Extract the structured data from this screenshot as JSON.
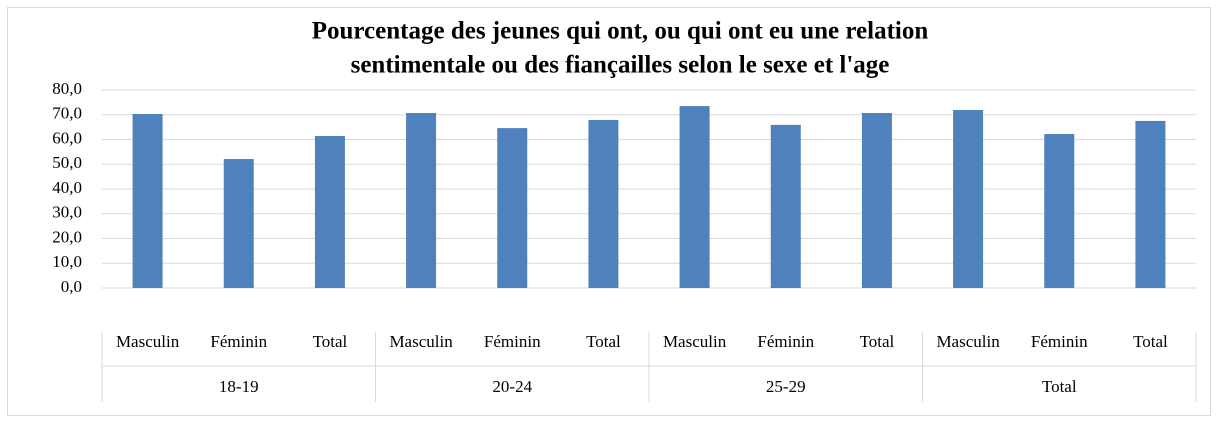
{
  "chart_data": {
    "type": "bar",
    "title": [
      "Pourcentage des jeunes qui ont, ou qui ont eu une relation",
      "sentimentale ou des fiançailles selon le sexe et l'age"
    ],
    "categories": [
      "Masculin",
      "Féminin",
      "Total",
      "Masculin",
      "Féminin",
      "Total",
      "Masculin",
      "Féminin",
      "Total",
      "Masculin",
      "Féminin",
      "Total"
    ],
    "groups": [
      "18-19",
      "20-24",
      "25-29",
      "Total"
    ],
    "values": [
      70.3,
      52.1,
      61.4,
      70.7,
      64.6,
      67.9,
      73.5,
      65.9,
      70.7,
      71.9,
      62.2,
      67.5
    ],
    "color": "#4f81bd",
    "ylim": [
      0,
      80
    ],
    "yticks": [
      {
        "value": 0,
        "label": "0,0"
      },
      {
        "value": 10,
        "label": "10,0"
      },
      {
        "value": 20,
        "label": "20,0"
      },
      {
        "value": 30,
        "label": "30,0"
      },
      {
        "value": 40,
        "label": "40,0"
      },
      {
        "value": 50,
        "label": "50,0"
      },
      {
        "value": 60,
        "label": "60,0"
      },
      {
        "value": 70,
        "label": "70,0"
      },
      {
        "value": 80,
        "label": "80,0"
      }
    ],
    "grid": true
  }
}
